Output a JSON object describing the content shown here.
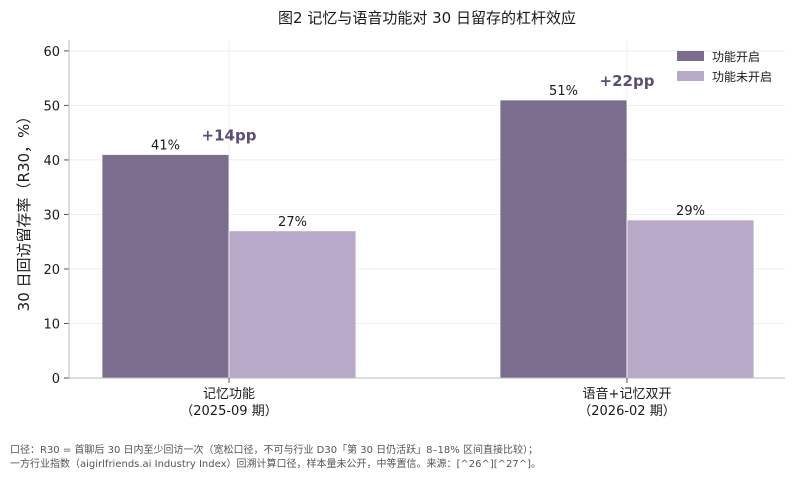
{
  "colors": {
    "on": "#7b6d8d",
    "off": "#b8a9c9",
    "annotation": "#5b4e74",
    "grid": "#eeeeee",
    "axis": "#bbbbbb",
    "text": "#1a1a1a"
  },
  "footnote": {
    "line1": "口径：R30 = 首聊后 30 日内至少回访一次（宽松口径，不可与行业 D30「第 30 日仍活跃」8–18% 区间直接比较）；",
    "line2": "一方行业指数（aigirlfriends.ai Industry Index）回溯计算口径，样本量未公开，中等置信。来源：[^26^][^27^]。"
  },
  "chart_data": {
    "type": "bar",
    "title": "图2 记忆与语音功能对 30 日留存的杠杆效应",
    "ylabel": "30 日回访留存率（R30，%）",
    "xlabel": "",
    "ylim": [
      0,
      62
    ],
    "yticks": [
      0,
      10,
      20,
      30,
      40,
      50,
      60
    ],
    "grid": true,
    "legend": "top-right",
    "categories": [
      {
        "line1": "记忆功能",
        "line2": "（2025-09 期）"
      },
      {
        "line1": "语音+记忆双开",
        "line2": "（2026-02 期）"
      }
    ],
    "series": [
      {
        "name": "功能开启",
        "values": [
          41,
          51
        ],
        "labels": [
          "41%",
          "51%"
        ]
      },
      {
        "name": "功能未开启",
        "values": [
          27,
          29
        ],
        "labels": [
          "27%",
          "29%"
        ]
      }
    ],
    "annotations": [
      {
        "category": 0,
        "text": "+14pp",
        "y": 44.5
      },
      {
        "category": 1,
        "text": "+22pp",
        "y": 54.5
      }
    ]
  }
}
